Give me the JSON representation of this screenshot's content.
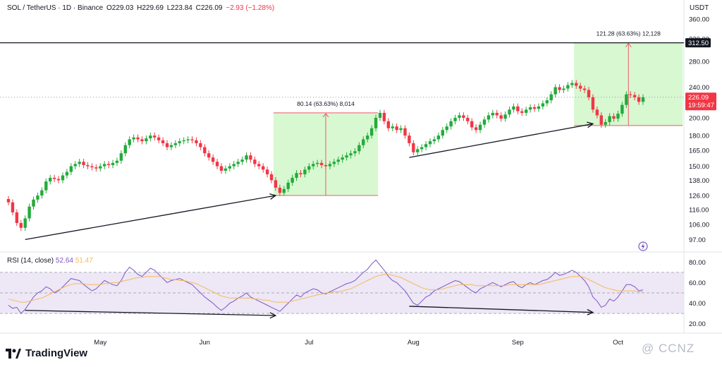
{
  "header": {
    "symbol": "SOL / TetherUS · 1D · Binance",
    "open": "O229.03",
    "high": "H229.69",
    "low": "L223.84",
    "close": "C226.09",
    "change": "−2.93 (−1.28%)",
    "currency": "USDT"
  },
  "rsi": {
    "label": "RSI (14, close)",
    "value": "52.64",
    "ma_value": "51.47"
  },
  "brand": {
    "name": "TradingView",
    "watermark": "@ CCNZ"
  },
  "colors": {
    "up": "#089981",
    "up_bright": "#22ab3a",
    "down": "#f23645",
    "rsi": "#7e57c2",
    "rsi_ma": "#f7b955",
    "band": "#ede7f6",
    "range_box": "#d7f8d0"
  },
  "chart_data": [
    {
      "type": "candlestick",
      "title": "SOL / TetherUS · 1D · Binance",
      "x_tick_labels": [
        "May",
        "Jun",
        "Jul",
        "Aug",
        "Sep",
        "Oct"
      ],
      "y_tick_labels": [
        "97.00",
        "106.00",
        "116.00",
        "126.00",
        "138.00",
        "150.00",
        "165.00",
        "180.00",
        "200.00",
        "220.00",
        "240.00",
        "280.00",
        "320.00",
        "360.00"
      ],
      "y_scale": "log",
      "ylim": [
        92,
        380
      ],
      "closes": [
        121,
        114,
        107,
        104,
        110,
        118,
        123,
        126,
        130,
        137,
        140,
        139,
        138,
        142,
        145,
        150,
        152,
        154,
        151,
        150,
        149,
        148,
        150,
        152,
        151,
        153,
        155,
        162,
        170,
        176,
        178,
        176,
        174,
        177,
        180,
        178,
        175,
        172,
        168,
        170,
        172,
        174,
        175,
        176,
        175,
        172,
        168,
        162,
        158,
        154,
        150,
        146,
        148,
        150,
        152,
        154,
        156,
        160,
        156,
        152,
        150,
        147,
        143,
        138,
        132,
        128,
        131,
        136,
        140,
        144,
        143,
        147,
        150,
        152,
        153,
        151,
        150,
        152,
        154,
        156,
        158,
        160,
        162,
        164,
        170,
        176,
        180,
        188,
        200,
        206,
        196,
        188,
        190,
        186,
        188,
        180,
        172,
        163,
        166,
        168,
        171,
        174,
        176,
        180,
        186,
        190,
        196,
        200,
        203,
        200,
        196,
        189,
        186,
        192,
        198,
        203,
        206,
        203,
        199,
        204,
        210,
        214,
        208,
        206,
        210,
        213,
        211,
        214,
        218,
        222,
        230,
        240,
        236,
        238,
        243,
        246,
        242,
        238,
        236,
        226,
        210,
        203,
        192,
        195,
        202,
        199,
        205,
        216,
        230,
        229,
        226,
        220,
        226
      ],
      "last_price": "226.09",
      "countdown": "19:59:47",
      "horizontal_level": "312.50",
      "current_price_line": 226.09,
      "range_boxes": [
        {
          "label": "80.14 (63.63%) 8,014",
          "from": 126.0,
          "to": 206.0,
          "start_bar": 64,
          "end_bar": 88
        },
        {
          "label": "121.28 (63.63%) 12,128",
          "from": 191.0,
          "to": 312.5,
          "start_bar": 136,
          "end_bar": 161
        }
      ],
      "trendlines": [
        {
          "from_bar": 4,
          "from_price": 97,
          "to_bar": 64,
          "to_price": 126
        },
        {
          "from_bar": 96,
          "from_price": 158,
          "to_bar": 140,
          "to_price": 193
        }
      ]
    },
    {
      "type": "line",
      "title": "RSI (14, close)",
      "y_tick_labels": [
        "20.00",
        "40.00",
        "60.00",
        "80.00"
      ],
      "ylim": [
        15,
        85
      ],
      "bands": [
        30,
        50,
        70
      ],
      "series": [
        {
          "name": "RSI",
          "values": [
            38,
            35,
            36,
            30,
            34,
            40,
            46,
            50,
            52,
            56,
            54,
            50,
            52,
            56,
            60,
            64,
            63,
            62,
            58,
            55,
            52,
            54,
            58,
            62,
            60,
            58,
            57,
            62,
            70,
            75,
            72,
            68,
            66,
            70,
            74,
            72,
            68,
            64,
            60,
            62,
            63,
            64,
            62,
            60,
            58,
            54,
            50,
            46,
            43,
            40,
            36,
            33,
            36,
            40,
            42,
            45,
            47,
            50,
            46,
            44,
            42,
            40,
            38,
            36,
            34,
            32,
            36,
            40,
            44,
            48,
            46,
            50,
            52,
            54,
            53,
            50,
            49,
            51,
            53,
            55,
            57,
            59,
            60,
            62,
            66,
            70,
            73,
            78,
            82,
            77,
            72,
            66,
            62,
            60,
            56,
            52,
            46,
            40,
            38,
            42,
            46,
            48,
            52,
            54,
            56,
            58,
            60,
            62,
            61,
            58,
            55,
            52,
            50,
            54,
            56,
            58,
            60,
            58,
            56,
            58,
            60,
            61,
            57,
            55,
            58,
            60,
            58,
            60,
            62,
            63,
            66,
            70,
            67,
            68,
            70,
            72,
            70,
            66,
            62,
            56,
            46,
            42,
            36,
            38,
            44,
            42,
            46,
            52,
            58,
            58,
            56,
            52,
            53
          ]
        },
        {
          "name": "RSI-based MA",
          "values": [
            44,
            43,
            42,
            41,
            41,
            42,
            43,
            44,
            45,
            47,
            49,
            51,
            53,
            55,
            57,
            58,
            59,
            59,
            59,
            58,
            58,
            58,
            58,
            59,
            59,
            60,
            60,
            61,
            62,
            63,
            64,
            65,
            65,
            66,
            66,
            66,
            66,
            65,
            64,
            63,
            63,
            62,
            62,
            61,
            60,
            59,
            57,
            55,
            53,
            51,
            49,
            47,
            46,
            45,
            45,
            45,
            45,
            45,
            45,
            44,
            44,
            43,
            43,
            42,
            41,
            41,
            41,
            41,
            42,
            43,
            44,
            45,
            46,
            47,
            48,
            49,
            50,
            50,
            51,
            51,
            52,
            53,
            54,
            56,
            58,
            60,
            62,
            64,
            66,
            67,
            68,
            68,
            67,
            66,
            65,
            63,
            61,
            59,
            57,
            55,
            54,
            53,
            53,
            53,
            54,
            55,
            56,
            57,
            58,
            58,
            58,
            58,
            57,
            57,
            57,
            57,
            57,
            57,
            57,
            57,
            58,
            58,
            58,
            58,
            58,
            58,
            58,
            58,
            59,
            60,
            61,
            62,
            63,
            64,
            65,
            66,
            66,
            66,
            65,
            63,
            61,
            59,
            57,
            55,
            54,
            53,
            52,
            52,
            52,
            52,
            52,
            51,
            51
          ]
        }
      ]
    }
  ]
}
